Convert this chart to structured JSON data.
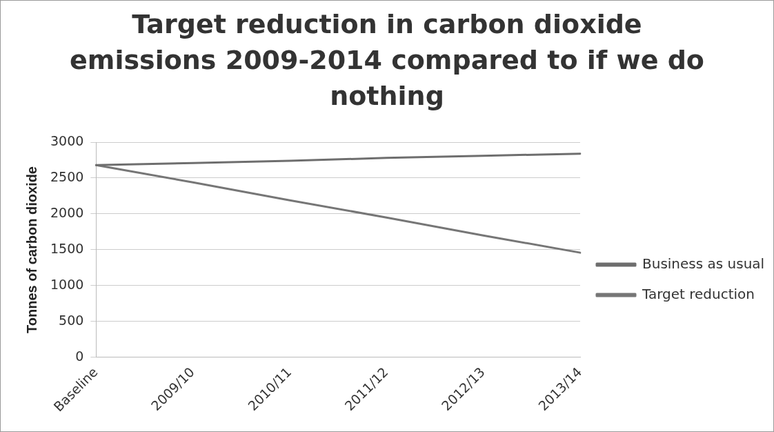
{
  "chart_data": {
    "type": "line",
    "title": "Target reduction in carbon dioxide emissions 2009-2014 compared to if we do nothing",
    "ylabel": "Tonnes of carbon dioxide",
    "categories": [
      "Baseline",
      "2009/10",
      "2010/11",
      "2011/12",
      "2012/13",
      "2013/14"
    ],
    "series": [
      {
        "name": "Business as usual",
        "color": "#6e6e6e",
        "values": [
          2680,
          2710,
          2740,
          2780,
          2810,
          2840
        ]
      },
      {
        "name": "Target reduction",
        "color": "#767676",
        "values": [
          2680,
          2440,
          2190,
          1950,
          1700,
          1460
        ]
      }
    ],
    "ylim": [
      0,
      3000
    ],
    "yticks": [
      0,
      500,
      1000,
      1500,
      2000,
      2500,
      3000
    ],
    "grid": "y",
    "legend": "right",
    "marker": "none",
    "line_style": "solid"
  }
}
